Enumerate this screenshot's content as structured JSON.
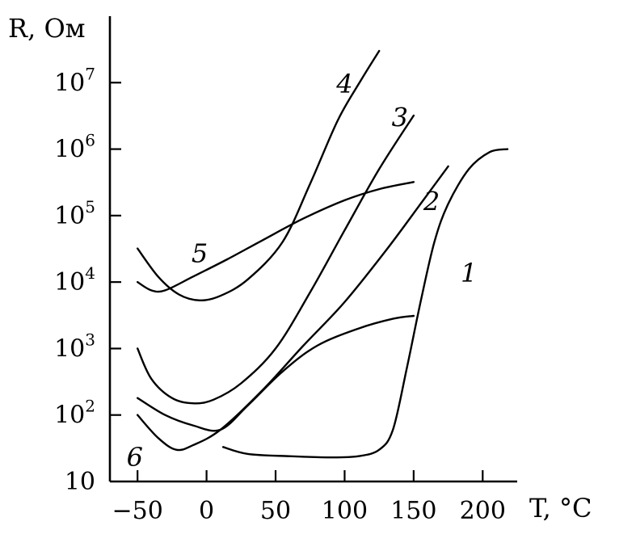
{
  "chart_data": {
    "type": "line",
    "title": "",
    "ylabel": "R, Ом",
    "xlabel": "T, °C",
    "x_scale": "linear",
    "y_scale": "log",
    "xlim": [
      -70,
      225
    ],
    "ylim": [
      10,
      100000000
    ],
    "grid": false,
    "legend": "none",
    "x_ticks": [
      -50,
      0,
      50,
      100,
      150,
      200
    ],
    "x_tick_labels": [
      "−50",
      "0",
      "50",
      "100",
      "150",
      "200"
    ],
    "y_ticks": [
      10,
      100,
      1000,
      10000,
      100000,
      1000000,
      10000000
    ],
    "y_tick_labels": [
      {
        "base": "10",
        "exp": ""
      },
      {
        "base": "10",
        "exp": "2"
      },
      {
        "base": "10",
        "exp": "3"
      },
      {
        "base": "10",
        "exp": "4"
      },
      {
        "base": "10",
        "exp": "5"
      },
      {
        "base": "10",
        "exp": "6"
      },
      {
        "base": "10",
        "exp": "7"
      }
    ],
    "series": [
      {
        "name": "1",
        "label_at": [
          190,
          10000
        ],
        "points": [
          [
            12,
            33
          ],
          [
            30,
            26
          ],
          [
            60,
            24
          ],
          [
            90,
            23
          ],
          [
            110,
            24
          ],
          [
            125,
            30
          ],
          [
            135,
            60
          ],
          [
            145,
            500
          ],
          [
            155,
            5000
          ],
          [
            165,
            40000
          ],
          [
            175,
            150000
          ],
          [
            190,
            500000
          ],
          [
            205,
            900000
          ],
          [
            218,
            1000000
          ]
        ]
      },
      {
        "name": "2",
        "label_at": [
          163,
          120000
        ],
        "points": [
          [
            -50,
            100
          ],
          [
            -35,
            45
          ],
          [
            -22,
            30
          ],
          [
            -10,
            35
          ],
          [
            10,
            60
          ],
          [
            40,
            230
          ],
          [
            70,
            1100
          ],
          [
            100,
            5000
          ],
          [
            130,
            30000
          ],
          [
            155,
            150000
          ],
          [
            175,
            550000
          ]
        ]
      },
      {
        "name": "3",
        "label_at": [
          140,
          2200000
        ],
        "points": [
          [
            -50,
            1000
          ],
          [
            -40,
            350
          ],
          [
            -25,
            180
          ],
          [
            -10,
            150
          ],
          [
            5,
            170
          ],
          [
            25,
            300
          ],
          [
            50,
            1000
          ],
          [
            75,
            7000
          ],
          [
            100,
            60000
          ],
          [
            125,
            500000
          ],
          [
            150,
            3200000
          ]
        ]
      },
      {
        "name": "4",
        "label_at": [
          100,
          7000000
        ],
        "points": [
          [
            -50,
            32000
          ],
          [
            -35,
            12000
          ],
          [
            -20,
            6500
          ],
          [
            -5,
            5300
          ],
          [
            10,
            6200
          ],
          [
            30,
            11000
          ],
          [
            55,
            40000
          ],
          [
            75,
            300000
          ],
          [
            95,
            2700000
          ],
          [
            112,
            11000000
          ],
          [
            125,
            30000000
          ]
        ]
      },
      {
        "name": "5",
        "label_at": [
          -5,
          20000
        ],
        "points": [
          [
            -50,
            10000
          ],
          [
            -40,
            7500
          ],
          [
            -30,
            7500
          ],
          [
            -10,
            12000
          ],
          [
            15,
            22000
          ],
          [
            40,
            42000
          ],
          [
            70,
            90000
          ],
          [
            100,
            170000
          ],
          [
            125,
            250000
          ],
          [
            150,
            320000
          ]
        ]
      },
      {
        "name": "6",
        "label_at": [
          -52,
          17
        ],
        "points": [
          [
            -50,
            180
          ],
          [
            -30,
            100
          ],
          [
            -10,
            70
          ],
          [
            10,
            60
          ],
          [
            30,
            140
          ],
          [
            55,
            450
          ],
          [
            80,
            1100
          ],
          [
            110,
            2000
          ],
          [
            135,
            2800
          ],
          [
            150,
            3100
          ]
        ]
      }
    ],
    "colors": {
      "ink": "#000000",
      "background": "#ffffff"
    }
  }
}
